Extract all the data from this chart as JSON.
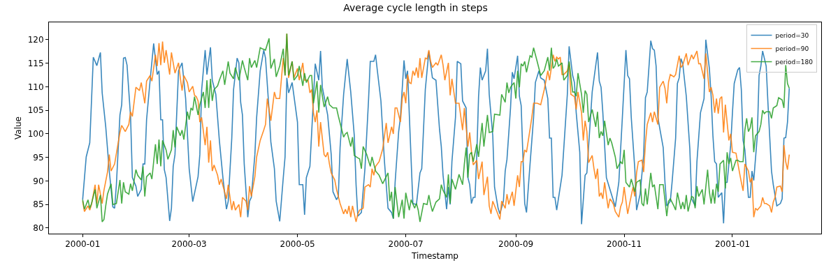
{
  "chart_data": {
    "type": "line",
    "title": "Average cycle length in steps",
    "xlabel": "Timestamp",
    "ylabel": "Value",
    "legend": "top right",
    "grid": false,
    "marker": "none",
    "line_style": "solid",
    "xlim": [
      "1999-12-13",
      "2001-02-20"
    ],
    "xticks": [
      {
        "value": "2000-01-01",
        "label": "2000-01"
      },
      {
        "value": "2000-03-01",
        "label": "2000-03"
      },
      {
        "value": "2000-05-01",
        "label": "2000-05"
      },
      {
        "value": "2000-07-01",
        "label": "2000-07"
      },
      {
        "value": "2000-09-01",
        "label": "2000-09"
      },
      {
        "value": "2000-11-01",
        "label": "2000-11"
      },
      {
        "value": "2001-01-01",
        "label": "2001-01"
      }
    ],
    "ylim": [
      78.8,
      123.7
    ],
    "yticks": [
      80,
      85,
      90,
      95,
      100,
      105,
      110,
      115,
      120
    ],
    "series": [
      {
        "name": "period=30",
        "color": "#1f77b4",
        "x": [
          "2000-01-01",
          "2000-01-03",
          "2000-01-05",
          "2000-01-07",
          "2000-01-09",
          "2000-01-11",
          "2000-01-12",
          "2000-01-14",
          "2000-01-16",
          "2000-01-18",
          "2000-01-19",
          "2000-01-20",
          "2000-01-22",
          "2000-01-23",
          "2000-01-24",
          "2000-01-25",
          "2000-01-26",
          "2000-01-28",
          "2000-01-29",
          "2000-01-31",
          "2000-02-01",
          "2000-02-03",
          "2000-02-04",
          "2000-02-05",
          "2000-02-06",
          "2000-02-08",
          "2000-02-10",
          "2000-02-12",
          "2000-02-13",
          "2000-02-14",
          "2000-02-15",
          "2000-02-16",
          "2000-02-17",
          "2000-02-19",
          "2000-02-20",
          "2000-02-21",
          "2000-02-22",
          "2000-02-24",
          "2000-02-26",
          "2000-02-28",
          "2000-03-01",
          "2000-03-03",
          "2000-03-06",
          "2000-03-07",
          "2000-03-08",
          "2000-03-10",
          "2000-03-11",
          "2000-03-13",
          "2000-03-14",
          "2000-03-16",
          "2000-03-18",
          "2000-03-20",
          "2000-03-22",
          "2000-03-23",
          "2000-03-25",
          "2000-03-26",
          "2000-03-28",
          "2000-03-29",
          "2000-03-30",
          "2000-03-31",
          "2000-04-01",
          "2000-04-03",
          "2000-04-04",
          "2000-04-05",
          "2000-04-07",
          "2000-04-08",
          "2000-04-10",
          "2000-04-12",
          "2000-04-13",
          "2000-04-15",
          "2000-04-16",
          "2000-04-18",
          "2000-04-19",
          "2000-04-21",
          "2000-04-23",
          "2000-04-24",
          "2000-04-25",
          "2000-04-26",
          "2000-04-28",
          "2000-05-01",
          "2000-05-02",
          "2000-05-04",
          "2000-05-05",
          "2000-05-06",
          "2000-05-08",
          "2000-05-10",
          "2000-05-11",
          "2000-05-13",
          "2000-05-14",
          "2000-05-15",
          "2000-05-18",
          "2000-05-20",
          "2000-05-21",
          "2000-05-23",
          "2000-05-24",
          "2000-05-25",
          "2000-05-27",
          "2000-05-29",
          "2000-05-31",
          "2000-06-02",
          "2000-06-03",
          "2000-06-04",
          "2000-06-06",
          "2000-06-08",
          "2000-06-10",
          "2000-06-11",
          "2000-06-13",
          "2000-06-14",
          "2000-06-15",
          "2000-06-17",
          "2000-06-19",
          "2000-06-21",
          "2000-06-23",
          "2000-06-24",
          "2000-06-25",
          "2000-06-27",
          "2000-06-28",
          "2000-06-30",
          "2000-07-01",
          "2000-07-02",
          "2000-07-04",
          "2000-07-05",
          "2000-07-07",
          "2000-07-09",
          "2000-07-10",
          "2000-07-12",
          "2000-07-14",
          "2000-07-16",
          "2000-07-18",
          "2000-07-20",
          "2000-07-21",
          "2000-07-22",
          "2000-07-24",
          "2000-07-25",
          "2000-07-26",
          "2000-07-27",
          "2000-07-29",
          "2000-07-30",
          "2000-08-01",
          "2000-08-02",
          "2000-08-04",
          "2000-08-05",
          "2000-08-06",
          "2000-08-07",
          "2000-08-08",
          "2000-08-09",
          "2000-08-10",
          "2000-08-11",
          "2000-08-12",
          "2000-08-13",
          "2000-08-15",
          "2000-08-16",
          "2000-08-17",
          "2000-08-19",
          "2000-08-20",
          "2000-08-22",
          "2000-08-23",
          "2000-08-25",
          "2000-08-26",
          "2000-08-27",
          "2000-08-29",
          "2000-08-30",
          "2000-08-31",
          "2000-09-02",
          "2000-09-03",
          "2000-09-04",
          "2000-09-05",
          "2000-09-06",
          "2000-09-07",
          "2000-09-09",
          "2000-09-11",
          "2000-09-12",
          "2000-09-14",
          "2000-09-15",
          "2000-09-17",
          "2000-09-19",
          "2000-09-20",
          "2000-09-21",
          "2000-09-22",
          "2000-09-23",
          "2000-09-24",
          "2000-09-27",
          "2000-09-30",
          "2000-10-01",
          "2000-10-03",
          "2000-10-04",
          "2000-10-05",
          "2000-10-07",
          "2000-10-08",
          "2000-10-10",
          "2000-10-11",
          "2000-10-14",
          "2000-10-15",
          "2000-10-17",
          "2000-10-18",
          "2000-10-19",
          "2000-10-20",
          "2000-10-22",
          "2000-10-24",
          "2000-10-27",
          "2000-10-29",
          "2000-10-31",
          "2000-11-02",
          "2000-11-03",
          "2000-11-04",
          "2000-11-05",
          "2000-11-07",
          "2000-11-08",
          "2000-11-10",
          "2000-11-12",
          "2000-11-13",
          "2000-11-14",
          "2000-11-16",
          "2000-11-17",
          "2000-11-18",
          "2000-11-19",
          "2000-11-20",
          "2000-11-21",
          "2000-11-23",
          "2000-11-24",
          "2000-11-25",
          "2000-11-27",
          "2000-11-28",
          "2000-11-30",
          "2000-12-01",
          "2000-12-02",
          "2000-12-03",
          "2000-12-04",
          "2000-12-06",
          "2000-12-08",
          "2000-12-09",
          "2000-12-11",
          "2000-12-12",
          "2000-12-14",
          "2000-12-16",
          "2000-12-17",
          "2000-12-19",
          "2000-12-20",
          "2000-12-21",
          "2000-12-22",
          "2000-12-23",
          "2000-12-24",
          "2000-12-26",
          "2000-12-27",
          "2000-12-28",
          "2000-12-29",
          "2000-12-31",
          "2001-01-01",
          "2001-01-02",
          "2001-01-04",
          "2001-01-05",
          "2001-01-06",
          "2001-01-07",
          "2001-01-08",
          "2001-01-10",
          "2001-01-11",
          "2001-01-12",
          "2001-01-13",
          "2001-01-15",
          "2001-01-16",
          "2001-01-17",
          "2001-01-18",
          "2001-01-20",
          "2001-01-21",
          "2001-01-23",
          "2001-01-24",
          "2001-01-26",
          "2001-01-28",
          "2001-01-29",
          "2001-01-30",
          "2001-01-31",
          "2001-02-01",
          "2001-02-02"
        ],
        "values": [
          86.0,
          95.1,
          98.1,
          116.3,
          114.5,
          117.3,
          108.7,
          101.5,
          92.1,
          84.5,
          84.2,
          89.2,
          104.0,
          106.2,
          116.1,
          116.2,
          114.6,
          103.5,
          90.7,
          88.9,
          86.7,
          88.2,
          93.6,
          93.6,
          103.0,
          111.4,
          119.2,
          112.6,
          113.4,
          103.0,
          103.0,
          92.4,
          90.7,
          81.5,
          84.2,
          93.1,
          95.6,
          113.4,
          115.1,
          107.5,
          92.6,
          85.6,
          90.9,
          95.6,
          109.2,
          117.8,
          112.6,
          118.4,
          111.4,
          108.4,
          98.6,
          90.7,
          84.0,
          85.7,
          99.1,
          109.4,
          116.1,
          115.1,
          106.7,
          104.0,
          93.6,
          82.3,
          85.7,
          86.5,
          95.6,
          103.5,
          113.4,
          117.8,
          116.1,
          105.0,
          98.3,
          92.6,
          85.7,
          81.4,
          90.7,
          95.1,
          111.9,
          108.7,
          110.9,
          102.5,
          89.2,
          89.2,
          82.8,
          90.7,
          93.1,
          107.5,
          114.9,
          111.4,
          117.6,
          109.9,
          104.0,
          95.6,
          87.7,
          86.0,
          86.7,
          97.1,
          108.4,
          115.9,
          108.9,
          99.6,
          89.2,
          82.5,
          83.3,
          92.6,
          107.0,
          115.4,
          115.4,
          116.8,
          113.4,
          107.0,
          94.1,
          84.2,
          83.3,
          82.0,
          89.7,
          100.5,
          103.5,
          115.6,
          111.7,
          113.4,
          94.6,
          85.2,
          85.0,
          91.7,
          92.6,
          109.4,
          117.5,
          111.9,
          111.4,
          101.0,
          97.3,
          91.2,
          84.0,
          88.7,
          85.0,
          94.1,
          103.5,
          115.4,
          114.9,
          107.0,
          105.5,
          90.7,
          89.2,
          85.2,
          86.5,
          86.5,
          95.6,
          107.9,
          114.1,
          111.4,
          113.4,
          118.1,
          108.4,
          99.6,
          88.7,
          84.2,
          83.0,
          85.7,
          92.1,
          94.6,
          105.5,
          113.1,
          111.7,
          116.6,
          108.0,
          106.0,
          95.1,
          85.2,
          83.3,
          93.6,
          103.5,
          110.9,
          113.4,
          111.9,
          111.4,
          107.5,
          99.1,
          99.1,
          86.5,
          86.5,
          83.8,
          91.2,
          108.4,
          118.6,
          112.4,
          110.9,
          104.5,
          96.1,
          80.8,
          91.2,
          91.7,
          108.9,
          111.7,
          117.3,
          111.2,
          109.9,
          104.5,
          90.7,
          88.2,
          84.5,
          89.7,
          103.5,
          117.8,
          112.4,
          111.7,
          103.5,
          92.6,
          83.8,
          87.2,
          95.6,
          107.7,
          108.9,
          119.8,
          118.1,
          117.8,
          114.4,
          103.5,
          101.3,
          97.1,
          89.7,
          84.7,
          85.7,
          89.7,
          99.1,
          110.7,
          111.9,
          116.0,
          114.9,
          108.0,
          96.8,
          86.2,
          84.7,
          94.1,
          104.5,
          107.5,
          120.0,
          113.9,
          108.0,
          99.6,
          94.1,
          93.6,
          86.5,
          87.5,
          81.0,
          89.7,
          89.7,
          97.6,
          104.5,
          110.7,
          113.6,
          114.1,
          109.4,
          98.6,
          96.6,
          86.5,
          86.5,
          92.1,
          90.1,
          99.6,
          112.4,
          114.4,
          117.6,
          114.4,
          106.5,
          92.1,
          89.2,
          84.7,
          85.2,
          86.2,
          99.1,
          99.2,
          102.5,
          109.7
        ]
      },
      {
        "name": "period=90",
        "color": "#ff7f0e",
        "x": [
          "2000-01-01",
          "2000-01-02",
          "2000-01-04",
          "2000-01-05",
          "2000-01-06",
          "2000-01-08",
          "2000-01-09",
          "2000-01-10",
          "2000-01-12",
          "2000-01-13",
          "2000-01-15",
          "2000-01-16",
          "2000-01-17",
          "2000-01-19",
          "2000-01-22",
          "2000-01-23",
          "2000-01-25",
          "2000-01-27",
          "2000-01-28",
          "2000-01-29",
          "2000-01-31",
          "2000-02-02",
          "2000-02-03",
          "2000-02-05",
          "2000-02-06",
          "2000-02-08",
          "2000-02-09",
          "2000-02-11",
          "2000-02-12",
          "2000-02-13",
          "2000-02-14",
          "2000-02-15",
          "2000-02-16",
          "2000-02-17",
          "2000-02-19",
          "2000-02-20",
          "2000-02-22",
          "2000-02-24",
          "2000-02-25",
          "2000-02-26",
          "2000-02-27",
          "2000-02-29",
          "2000-03-01",
          "2000-03-03",
          "2000-03-04",
          "2000-03-05",
          "2000-03-06",
          "2000-03-07",
          "2000-03-08",
          "2000-03-10",
          "2000-03-11",
          "2000-03-12",
          "2000-03-13",
          "2000-03-14",
          "2000-03-15",
          "2000-03-17",
          "2000-03-18",
          "2000-03-19",
          "2000-03-22",
          "2000-03-23",
          "2000-03-25",
          "2000-03-26",
          "2000-03-27",
          "2000-03-29",
          "2000-03-30",
          "2000-03-31",
          "2000-04-02",
          "2000-04-03",
          "2000-04-04",
          "2000-04-05",
          "2000-04-07",
          "2000-04-08",
          "2000-04-10",
          "2000-04-12",
          "2000-04-13",
          "2000-04-14",
          "2000-04-16",
          "2000-04-18",
          "2000-04-19",
          "2000-04-21",
          "2000-04-22",
          "2000-04-23",
          "2000-04-24",
          "2000-04-25",
          "2000-04-26",
          "2000-04-28",
          "2000-04-29",
          "2000-05-01",
          "2000-05-02",
          "2000-05-04",
          "2000-05-05",
          "2000-05-07",
          "2000-05-08",
          "2000-05-09",
          "2000-05-10",
          "2000-05-11",
          "2000-05-12",
          "2000-05-13",
          "2000-05-14",
          "2000-05-16",
          "2000-05-17",
          "2000-05-18",
          "2000-05-19",
          "2000-05-20",
          "2000-05-22",
          "2000-05-23",
          "2000-05-25",
          "2000-05-27",
          "2000-05-28",
          "2000-05-29",
          "2000-05-30",
          "2000-05-31",
          "2000-06-01",
          "2000-06-03",
          "2000-06-04",
          "2000-06-05",
          "2000-06-07",
          "2000-06-08",
          "2000-06-10",
          "2000-06-11",
          "2000-06-12",
          "2000-06-13",
          "2000-06-14",
          "2000-06-16",
          "2000-06-18",
          "2000-06-20",
          "2000-06-21",
          "2000-06-23",
          "2000-06-24",
          "2000-06-25",
          "2000-06-26",
          "2000-06-28",
          "2000-06-29",
          "2000-06-30",
          "2000-07-01",
          "2000-07-02",
          "2000-07-03",
          "2000-07-04",
          "2000-07-05",
          "2000-07-06",
          "2000-07-07",
          "2000-07-08",
          "2000-07-09",
          "2000-07-10",
          "2000-07-12",
          "2000-07-13",
          "2000-07-14",
          "2000-07-15",
          "2000-07-16",
          "2000-07-18",
          "2000-07-19",
          "2000-07-21",
          "2000-07-22",
          "2000-07-23",
          "2000-07-25",
          "2000-07-26",
          "2000-07-27",
          "2000-07-29",
          "2000-07-31",
          "2000-08-02",
          "2000-08-03",
          "2000-08-05",
          "2000-08-06",
          "2000-08-07",
          "2000-08-08",
          "2000-08-10",
          "2000-08-11",
          "2000-08-13",
          "2000-08-14",
          "2000-08-16",
          "2000-08-17",
          "2000-08-18",
          "2000-08-19",
          "2000-08-21",
          "2000-08-23",
          "2000-08-24",
          "2000-08-26",
          "2000-08-27",
          "2000-08-28",
          "2000-08-30",
          "2000-08-31",
          "2000-09-02",
          "2000-09-03",
          "2000-09-04",
          "2000-09-05",
          "2000-09-06",
          "2000-09-07",
          "2000-09-09",
          "2000-09-10",
          "2000-09-11",
          "2000-09-13",
          "2000-09-15",
          "2000-09-17",
          "2000-09-18",
          "2000-09-19",
          "2000-09-20",
          "2000-09-21",
          "2000-09-22",
          "2000-09-23",
          "2000-09-24",
          "2000-09-25",
          "2000-09-26",
          "2000-09-27",
          "2000-09-28",
          "2000-09-30",
          "2000-10-01",
          "2000-10-02",
          "2000-10-04",
          "2000-10-05",
          "2000-10-06",
          "2000-10-08",
          "2000-10-09",
          "2000-10-10",
          "2000-10-11",
          "2000-10-12",
          "2000-10-14",
          "2000-10-15",
          "2000-10-16",
          "2000-10-17",
          "2000-10-18",
          "2000-10-19",
          "2000-10-20",
          "2000-10-21",
          "2000-10-23",
          "2000-10-24",
          "2000-10-25",
          "2000-10-26",
          "2000-10-27",
          "2000-10-29",
          "2000-10-30",
          "2000-10-31",
          "2000-11-01",
          "2000-11-03",
          "2000-11-04",
          "2000-11-06",
          "2000-11-07",
          "2000-11-08",
          "2000-11-09",
          "2000-11-11",
          "2000-11-12",
          "2000-11-13",
          "2000-11-14",
          "2000-11-16",
          "2000-11-17",
          "2000-11-18",
          "2000-11-20",
          "2000-11-21",
          "2000-11-23",
          "2000-11-24",
          "2000-11-25",
          "2000-11-26",
          "2000-11-27",
          "2000-11-29",
          "2000-11-30",
          "2000-12-02",
          "2000-12-03",
          "2000-12-04",
          "2000-12-06",
          "2000-12-07",
          "2000-12-09",
          "2000-12-10",
          "2000-12-12",
          "2000-12-13",
          "2000-12-14",
          "2000-12-16",
          "2000-12-17",
          "2000-12-19",
          "2000-12-20",
          "2000-12-21",
          "2000-12-22",
          "2000-12-23",
          "2000-12-24",
          "2000-12-25",
          "2000-12-26",
          "2000-12-27",
          "2000-12-28",
          "2000-12-30",
          "2000-12-31",
          "2001-01-01",
          "2001-01-03",
          "2001-01-05",
          "2001-01-06",
          "2001-01-07",
          "2001-01-08",
          "2001-01-10",
          "2001-01-11",
          "2001-01-12",
          "2001-01-13",
          "2001-01-14",
          "2001-01-15",
          "2001-01-17",
          "2001-01-18",
          "2001-01-19",
          "2001-01-20",
          "2001-01-22",
          "2001-01-23",
          "2001-01-24",
          "2001-01-25",
          "2001-01-26",
          "2001-01-28",
          "2001-01-29",
          "2001-01-30",
          "2001-01-31",
          "2001-02-01",
          "2001-02-02"
        ],
        "values": [
          85.7,
          83.5,
          84.7,
          83.8,
          85.0,
          89.2,
          85.2,
          89.2,
          85.2,
          88.0,
          91.9,
          95.6,
          92.1,
          93.6,
          100.3,
          101.8,
          100.5,
          102.0,
          104.7,
          103.7,
          109.9,
          109.2,
          110.9,
          106.5,
          111.2,
          112.4,
          111.2,
          116.8,
          114.4,
          119.3,
          114.6,
          119.6,
          115.1,
          117.8,
          112.6,
          117.3,
          112.9,
          115.1,
          111.9,
          109.2,
          112.4,
          110.9,
          108.9,
          110.1,
          108.2,
          107.9,
          107.0,
          102.5,
          103.5,
          97.6,
          101.5,
          93.9,
          98.6,
          92.1,
          93.4,
          91.2,
          89.2,
          90.4,
          86.2,
          89.2,
          83.8,
          85.7,
          83.8,
          85.0,
          82.3,
          86.5,
          85.7,
          83.8,
          88.9,
          86.7,
          90.9,
          95.1,
          98.6,
          100.8,
          102.0,
          107.5,
          102.8,
          108.9,
          107.5,
          107.5,
          111.9,
          116.1,
          112.4,
          121.3,
          111.9,
          115.4,
          111.9,
          113.9,
          111.4,
          115.1,
          111.4,
          111.4,
          108.7,
          109.4,
          104.5,
          102.5,
          105.0,
          97.3,
          102.5,
          95.6,
          95.1,
          96.1,
          93.6,
          91.7,
          90.2,
          88.2,
          85.2,
          83.0,
          84.0,
          83.0,
          84.7,
          82.3,
          84.7,
          81.3,
          83.0,
          83.8,
          84.2,
          88.7,
          89.2,
          88.7,
          92.6,
          91.2,
          93.1,
          94.1,
          96.8,
          102.3,
          98.1,
          101.5,
          100.0,
          105.5,
          105.5,
          102.5,
          107.5,
          108.9,
          106.5,
          112.6,
          110.9,
          110.7,
          113.4,
          112.4,
          114.1,
          111.9,
          116.1,
          111.9,
          116.1,
          115.9,
          117.8,
          115.4,
          114.1,
          115.1,
          114.6,
          116.8,
          114.6,
          111.4,
          115.1,
          108.2,
          111.7,
          106.5,
          106.5,
          100.8,
          105.5,
          97.3,
          100.3,
          96.3,
          93.4,
          94.4,
          90.4,
          94.1,
          87.0,
          90.9,
          84.7,
          83.0,
          85.7,
          83.8,
          81.8,
          85.7,
          84.2,
          87.2,
          85.0,
          87.7,
          84.7,
          91.2,
          88.7,
          94.1,
          94.1,
          96.6,
          96.1,
          101.0,
          103.5,
          106.5,
          106.5,
          106.2,
          109.4,
          111.4,
          113.4,
          111.4,
          114.1,
          116.8,
          115.4,
          116.3,
          115.9,
          116.3,
          112.6,
          112.6,
          113.4,
          115.1,
          108.4,
          107.9,
          105.2,
          108.9,
          104.5,
          98.6,
          102.8,
          100.5,
          93.9,
          95.4,
          92.6,
          90.4,
          92.6,
          86.7,
          87.5,
          86.2,
          89.7,
          84.2,
          86.2,
          85.7,
          85.0,
          83.5,
          82.3,
          84.5,
          85.5,
          88.7,
          83.0,
          85.0,
          88.7,
          86.7,
          91.7,
          94.1,
          94.4,
          91.9,
          98.1,
          102.0,
          104.5,
          102.5,
          104.7,
          102.0,
          109.9,
          111.2,
          109.7,
          106.5,
          111.0,
          112.6,
          112.1,
          112.6,
          116.6,
          114.1,
          114.6,
          117.1,
          114.6,
          116.8,
          115.9,
          117.6,
          114.9,
          114.9,
          111.7,
          117.1,
          108.9,
          109.9,
          108.2,
          104.5,
          107.5,
          104.3,
          107.5,
          107.9,
          100.3,
          106.2,
          98.6,
          100.0,
          96.1,
          95.9,
          91.7,
          89.7,
          87.9,
          93.6,
          92.1,
          89.7,
          90.7,
          82.3,
          84.2,
          83.8,
          84.7,
          86.5,
          85.2,
          85.2,
          84.7,
          83.3,
          85.5,
          86.5,
          88.7,
          88.9,
          87.7,
          97.6,
          94.1,
          92.4,
          95.6
        ]
      },
      {
        "name": "period=180",
        "color": "#2ca02c",
        "x": [
          "2000-01-01",
          "2000-01-02",
          "2000-01-04",
          "2000-01-05",
          "2000-01-06",
          "2000-01-08",
          "2000-01-09",
          "2000-01-11",
          "2000-01-12",
          "2000-01-13",
          "2000-01-14",
          "2000-01-15",
          "2000-01-17",
          "2000-01-18",
          "2000-01-20",
          "2000-01-22",
          "2000-01-23",
          "2000-01-24",
          "2000-01-25",
          "2000-01-27",
          "2000-01-28",
          "2000-01-29",
          "2000-01-31",
          "2000-02-01",
          "2000-02-03",
          "2000-02-04",
          "2000-02-05",
          "2000-02-06",
          "2000-02-08",
          "2000-02-09",
          "2000-02-11",
          "2000-02-12",
          "2000-02-13",
          "2000-02-14",
          "2000-02-15",
          "2000-02-17",
          "2000-02-18",
          "2000-02-20",
          "2000-02-21",
          "2000-02-22",
          "2000-02-23",
          "2000-02-25",
          "2000-02-26",
          "2000-02-27",
          "2000-02-29",
          "2000-03-01",
          "2000-03-02",
          "2000-03-03",
          "2000-03-04",
          "2000-03-06",
          "2000-03-07",
          "2000-03-09",
          "2000-03-10",
          "2000-03-11",
          "2000-03-12",
          "2000-03-13",
          "2000-03-14",
          "2000-03-15",
          "2000-03-17",
          "2000-03-18",
          "2000-03-20",
          "2000-03-21",
          "2000-03-23",
          "2000-03-24",
          "2000-03-26",
          "2000-03-27",
          "2000-03-29",
          "2000-03-31",
          "2000-04-01",
          "2000-04-03",
          "2000-04-04",
          "2000-04-05",
          "2000-04-07",
          "2000-04-08",
          "2000-04-10",
          "2000-04-11",
          "2000-04-13",
          "2000-04-15",
          "2000-04-16",
          "2000-04-18",
          "2000-04-19",
          "2000-04-21",
          "2000-04-23",
          "2000-04-24",
          "2000-04-25",
          "2000-04-26",
          "2000-04-28",
          "2000-04-29",
          "2000-05-01",
          "2000-05-02",
          "2000-05-04",
          "2000-05-05",
          "2000-05-06",
          "2000-05-08",
          "2000-05-09",
          "2000-05-10",
          "2000-05-12",
          "2000-05-13",
          "2000-05-14",
          "2000-05-16",
          "2000-05-18",
          "2000-05-19",
          "2000-05-21",
          "2000-05-23",
          "2000-05-24",
          "2000-05-26",
          "2000-05-27",
          "2000-05-28",
          "2000-05-29",
          "2000-05-31",
          "2000-06-01",
          "2000-06-02",
          "2000-06-04",
          "2000-06-05",
          "2000-06-06",
          "2000-06-07",
          "2000-06-09",
          "2000-06-11",
          "2000-06-12",
          "2000-06-14",
          "2000-06-16",
          "2000-06-18",
          "2000-06-21",
          "2000-06-22",
          "2000-06-23",
          "2000-06-24",
          "2000-06-25",
          "2000-06-27",
          "2000-06-29",
          "2000-06-30",
          "2000-07-01",
          "2000-07-03",
          "2000-07-04",
          "2000-07-06",
          "2000-07-07",
          "2000-07-08",
          "2000-07-09",
          "2000-07-11",
          "2000-07-13",
          "2000-07-14",
          "2000-07-15",
          "2000-07-16",
          "2000-07-18",
          "2000-07-20",
          "2000-07-21",
          "2000-07-22",
          "2000-07-24",
          "2000-07-25",
          "2000-07-26",
          "2000-07-27",
          "2000-07-29",
          "2000-07-31",
          "2000-08-02",
          "2000-08-03",
          "2000-08-04",
          "2000-08-05",
          "2000-08-06",
          "2000-08-07",
          "2000-08-08",
          "2000-08-10",
          "2000-08-11",
          "2000-08-13",
          "2000-08-14",
          "2000-08-16",
          "2000-08-17",
          "2000-08-19",
          "2000-08-20",
          "2000-08-23",
          "2000-08-24",
          "2000-08-26",
          "2000-08-27",
          "2000-08-28",
          "2000-08-29",
          "2000-08-31",
          "2000-09-01",
          "2000-09-02",
          "2000-09-03",
          "2000-09-04",
          "2000-09-05",
          "2000-09-06",
          "2000-09-07",
          "2000-09-09",
          "2000-09-10",
          "2000-09-11",
          "2000-09-13",
          "2000-09-15",
          "2000-09-17",
          "2000-09-19",
          "2000-09-20",
          "2000-09-21",
          "2000-09-22",
          "2000-09-23",
          "2000-09-24",
          "2000-09-25",
          "2000-09-27",
          "2000-09-28",
          "2000-09-30",
          "2000-10-01",
          "2000-10-03",
          "2000-10-04",
          "2000-10-05",
          "2000-10-06",
          "2000-10-08",
          "2000-10-09",
          "2000-10-10",
          "2000-10-11",
          "2000-10-12",
          "2000-10-14",
          "2000-10-16",
          "2000-10-17",
          "2000-10-18",
          "2000-10-19",
          "2000-10-20",
          "2000-10-21",
          "2000-10-23",
          "2000-10-24",
          "2000-10-25",
          "2000-10-27",
          "2000-10-28",
          "2000-10-30",
          "2000-10-31",
          "2000-11-01",
          "2000-11-02",
          "2000-11-04",
          "2000-11-05",
          "2000-11-07",
          "2000-11-08",
          "2000-11-10",
          "2000-11-11",
          "2000-11-12",
          "2000-11-13",
          "2000-11-14",
          "2000-11-16",
          "2000-11-17",
          "2000-11-18",
          "2000-11-20",
          "2000-11-21",
          "2000-11-23",
          "2000-11-25",
          "2000-11-26",
          "2000-11-27",
          "2000-11-29",
          "2000-11-30",
          "2000-12-01",
          "2000-12-03",
          "2000-12-04",
          "2000-12-05",
          "2000-12-06",
          "2000-12-07",
          "2000-12-09",
          "2000-12-10",
          "2000-12-11",
          "2000-12-12",
          "2000-12-13",
          "2000-12-15",
          "2000-12-16",
          "2000-12-18",
          "2000-12-19",
          "2000-12-20",
          "2000-12-21",
          "2000-12-22",
          "2000-12-23",
          "2000-12-24",
          "2000-12-25",
          "2000-12-27",
          "2000-12-28",
          "2000-12-29",
          "2000-12-30",
          "2000-12-31",
          "2001-01-01",
          "2001-01-03",
          "2001-01-04",
          "2001-01-05",
          "2001-01-07",
          "2001-01-08",
          "2001-01-09",
          "2001-01-10",
          "2001-01-11",
          "2001-01-12",
          "2001-01-13",
          "2001-01-14",
          "2001-01-16",
          "2001-01-17",
          "2001-01-18",
          "2001-01-19",
          "2001-01-20",
          "2001-01-22",
          "2001-01-23",
          "2001-01-24",
          "2001-01-26",
          "2001-01-27",
          "2001-01-29",
          "2001-01-30",
          "2001-01-31",
          "2001-02-01",
          "2001-02-02"
        ],
        "values": [
          86.0,
          84.0,
          86.0,
          84.2,
          85.2,
          88.2,
          84.2,
          87.0,
          81.3,
          81.8,
          84.7,
          87.2,
          89.4,
          85.0,
          85.2,
          90.2,
          85.2,
          89.7,
          87.7,
          87.2,
          89.4,
          87.9,
          92.4,
          91.2,
          90.2,
          93.1,
          86.7,
          90.9,
          91.7,
          90.4,
          97.8,
          93.6,
          98.8,
          93.1,
          98.6,
          96.6,
          94.6,
          96.6,
          100.8,
          97.1,
          101.5,
          99.6,
          100.8,
          98.8,
          104.7,
          103.0,
          105.5,
          105.0,
          107.9,
          104.0,
          106.2,
          108.9,
          105.5,
          111.4,
          105.5,
          111.7,
          107.0,
          109.4,
          110.2,
          111.4,
          113.4,
          110.4,
          115.4,
          112.9,
          111.7,
          114.1,
          111.4,
          115.6,
          114.1,
          111.4,
          116.1,
          114.1,
          115.6,
          114.1,
          118.3,
          118.1,
          117.8,
          120.3,
          113.9,
          115.9,
          112.1,
          114.4,
          118.1,
          112.4,
          121.3,
          112.4,
          115.4,
          111.4,
          112.4,
          114.4,
          110.2,
          112.9,
          110.9,
          112.4,
          112.4,
          106.5,
          111.2,
          104.5,
          110.4,
          105.7,
          107.9,
          106.2,
          105.5,
          105.5,
          103.8,
          100.8,
          99.3,
          100.0,
          100.3,
          97.3,
          99.3,
          95.4,
          94.9,
          94.7,
          92.6,
          97.3,
          95.6,
          93.1,
          95.1,
          92.1,
          91.2,
          89.4,
          91.7,
          85.7,
          87.7,
          82.0,
          88.7,
          82.3,
          86.0,
          82.0,
          87.5,
          83.8,
          86.0,
          84.2,
          85.2,
          83.8,
          81.3,
          85.2,
          85.0,
          87.0,
          85.0,
          83.5,
          85.5,
          86.2,
          89.2,
          88.0,
          86.5,
          91.4,
          85.2,
          90.4,
          88.2,
          91.4,
          89.2,
          93.6,
          97.1,
          90.7,
          95.6,
          96.1,
          94.1,
          97.8,
          95.1,
          102.3,
          97.3,
          104.0,
          100.3,
          100.5,
          104.2,
          104.0,
          108.4,
          106.7,
          110.9,
          108.7,
          109.9,
          110.9,
          107.5,
          113.4,
          109.9,
          114.9,
          114.4,
          115.4,
          113.1,
          116.6,
          116.3,
          118.3,
          115.4,
          112.4,
          113.4,
          116.3,
          113.4,
          118.3,
          113.9,
          114.4,
          115.9,
          114.4,
          115.1,
          111.4,
          112.4,
          115.4,
          108.9,
          108.9,
          108.0,
          112.9,
          108.4,
          104.5,
          109.2,
          108.4,
          102.5,
          105.2,
          101.5,
          104.7,
          99.1,
          100.5,
          99.6,
          102.8,
          97.6,
          99.1,
          98.1,
          95.1,
          92.6,
          94.1,
          93.6,
          96.6,
          89.7,
          88.7,
          90.4,
          87.7,
          89.7,
          90.2,
          85.2,
          84.7,
          88.4,
          85.0,
          91.7,
          88.7,
          89.2,
          84.0,
          89.2,
          89.2,
          82.5,
          85.7,
          86.2,
          84.7,
          83.8,
          87.5,
          84.0,
          85.5,
          84.0,
          87.0,
          83.5,
          86.7,
          86.5,
          84.2,
          88.9,
          86.7,
          88.2,
          85.0,
          92.4,
          87.7,
          85.2,
          88.2,
          85.2,
          89.4,
          87.7,
          93.6,
          94.4,
          88.4,
          96.1,
          93.6,
          94.9,
          92.1,
          94.4,
          94.4,
          94.1,
          94.1,
          100.8,
          103.3,
          100.5,
          101.3,
          103.5,
          96.1,
          99.6,
          100.5,
          102.0,
          105.0,
          104.3,
          104.7,
          104.7,
          103.3,
          105.5,
          106.0,
          107.7,
          107.2,
          105.5,
          114.6,
          110.7,
          109.7
        ]
      }
    ]
  }
}
